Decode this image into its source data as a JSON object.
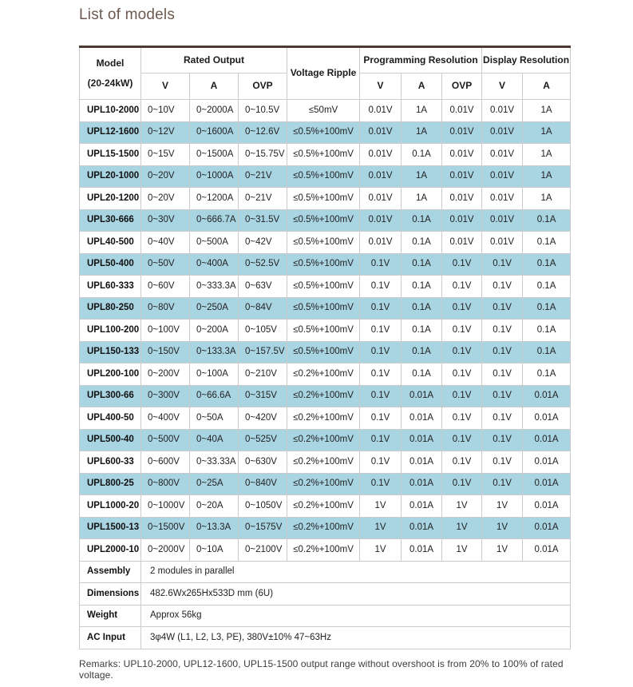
{
  "page": {
    "title": "List of models",
    "remarks": "Remarks: UPL10-2000, UPL12-1600, UPL15-1500 output range without overshoot is from 20% to 100% of rated voltage."
  },
  "colors": {
    "highlight_row": "#a9d4e2",
    "table_top_border": "#4a3a32",
    "title_text": "#6d594e",
    "cell_border": "#cbcbcb"
  },
  "table": {
    "header": {
      "model_line1": "Model",
      "model_line2": "(20-24kW)",
      "rated_output": "Rated Output",
      "voltage_ripple": "Voltage Ripple",
      "programming_resolution": "Programming Resolution",
      "display_resolution": "Display Resolution",
      "sub": [
        "V",
        "A",
        "OVP",
        "V",
        "A",
        "OVP",
        "V",
        "A"
      ]
    },
    "rows": [
      {
        "model": "UPL10-2000",
        "v": "0~10V",
        "a": "0~2000A",
        "ovp": "0~10.5V",
        "ripple": "≤50mV",
        "prog_v": "0.01V",
        "prog_a": "1A",
        "prog_ovp": "0.01V",
        "disp_v": "0.01V",
        "disp_a": "1A",
        "highlight": false
      },
      {
        "model": "UPL12-1600",
        "v": "0~12V",
        "a": "0~1600A",
        "ovp": "0~12.6V",
        "ripple": "≤0.5%+100mV",
        "prog_v": "0.01V",
        "prog_a": "1A",
        "prog_ovp": "0.01V",
        "disp_v": "0.01V",
        "disp_a": "1A",
        "highlight": true
      },
      {
        "model": "UPL15-1500",
        "v": "0~15V",
        "a": "0~1500A",
        "ovp": "0~15.75V",
        "ripple": "≤0.5%+100mV",
        "prog_v": "0.01V",
        "prog_a": "0.1A",
        "prog_ovp": "0.01V",
        "disp_v": "0.01V",
        "disp_a": "1A",
        "highlight": false
      },
      {
        "model": "UPL20-1000",
        "v": "0~20V",
        "a": "0~1000A",
        "ovp": "0~21V",
        "ripple": "≤0.5%+100mV",
        "prog_v": "0.01V",
        "prog_a": "1A",
        "prog_ovp": "0.01V",
        "disp_v": "0.01V",
        "disp_a": "1A",
        "highlight": true
      },
      {
        "model": "UPL20-1200",
        "v": "0~20V",
        "a": "0~1200A",
        "ovp": "0~21V",
        "ripple": "≤0.5%+100mV",
        "prog_v": "0.01V",
        "prog_a": "1A",
        "prog_ovp": "0.01V",
        "disp_v": "0.01V",
        "disp_a": "1A",
        "highlight": false
      },
      {
        "model": "UPL30-666",
        "v": "0~30V",
        "a": "0~666.7A",
        "ovp": "0~31.5V",
        "ripple": "≤0.5%+100mV",
        "prog_v": "0.01V",
        "prog_a": "0.1A",
        "prog_ovp": "0.01V",
        "disp_v": "0.01V",
        "disp_a": "0.1A",
        "highlight": true
      },
      {
        "model": "UPL40-500",
        "v": "0~40V",
        "a": "0~500A",
        "ovp": "0~42V",
        "ripple": "≤0.5%+100mV",
        "prog_v": "0.01V",
        "prog_a": "0.1A",
        "prog_ovp": "0.01V",
        "disp_v": "0.01V",
        "disp_a": "0.1A",
        "highlight": false
      },
      {
        "model": "UPL50-400",
        "v": "0~50V",
        "a": "0~400A",
        "ovp": "0~52.5V",
        "ripple": "≤0.5%+100mV",
        "prog_v": "0.1V",
        "prog_a": "0.1A",
        "prog_ovp": "0.1V",
        "disp_v": "0.1V",
        "disp_a": "0.1A",
        "highlight": true
      },
      {
        "model": "UPL60-333",
        "v": "0~60V",
        "a": "0~333.3A",
        "ovp": "0~63V",
        "ripple": "≤0.5%+100mV",
        "prog_v": "0.1V",
        "prog_a": "0.1A",
        "prog_ovp": "0.1V",
        "disp_v": "0.1V",
        "disp_a": "0.1A",
        "highlight": false
      },
      {
        "model": "UPL80-250",
        "v": "0~80V",
        "a": "0~250A",
        "ovp": "0~84V",
        "ripple": "≤0.5%+100mV",
        "prog_v": "0.1V",
        "prog_a": "0.1A",
        "prog_ovp": "0.1V",
        "disp_v": "0.1V",
        "disp_a": "0.1A",
        "highlight": true
      },
      {
        "model": "UPL100-200",
        "v": "0~100V",
        "a": "0~200A",
        "ovp": "0~105V",
        "ripple": "≤0.5%+100mV",
        "prog_v": "0.1V",
        "prog_a": "0.1A",
        "prog_ovp": "0.1V",
        "disp_v": "0.1V",
        "disp_a": "0.1A",
        "highlight": false
      },
      {
        "model": "UPL150-133",
        "v": "0~150V",
        "a": "0~133.3A",
        "ovp": "0~157.5V",
        "ripple": "≤0.5%+100mV",
        "prog_v": "0.1V",
        "prog_a": "0.1A",
        "prog_ovp": "0.1V",
        "disp_v": "0.1V",
        "disp_a": "0.1A",
        "highlight": true
      },
      {
        "model": "UPL200-100",
        "v": "0~200V",
        "a": "0~100A",
        "ovp": "0~210V",
        "ripple": "≤0.2%+100mV",
        "prog_v": "0.1V",
        "prog_a": "0.1A",
        "prog_ovp": "0.1V",
        "disp_v": "0.1V",
        "disp_a": "0.1A",
        "highlight": false
      },
      {
        "model": "UPL300-66",
        "v": "0~300V",
        "a": "0~66.6A",
        "ovp": "0~315V",
        "ripple": "≤0.2%+100mV",
        "prog_v": "0.1V",
        "prog_a": "0.01A",
        "prog_ovp": "0.1V",
        "disp_v": "0.1V",
        "disp_a": "0.01A",
        "highlight": true
      },
      {
        "model": "UPL400-50",
        "v": "0~400V",
        "a": "0~50A",
        "ovp": "0~420V",
        "ripple": "≤0.2%+100mV",
        "prog_v": "0.1V",
        "prog_a": "0.01A",
        "prog_ovp": "0.1V",
        "disp_v": "0.1V",
        "disp_a": "0.01A",
        "highlight": false
      },
      {
        "model": "UPL500-40",
        "v": "0~500V",
        "a": "0~40A",
        "ovp": "0~525V",
        "ripple": "≤0.2%+100mV",
        "prog_v": "0.1V",
        "prog_a": "0.01A",
        "prog_ovp": "0.1V",
        "disp_v": "0.1V",
        "disp_a": "0.01A",
        "highlight": true
      },
      {
        "model": "UPL600-33",
        "v": "0~600V",
        "a": "0~33.33A",
        "ovp": "0~630V",
        "ripple": "≤0.2%+100mV",
        "prog_v": "0.1V",
        "prog_a": "0.01A",
        "prog_ovp": "0.1V",
        "disp_v": "0.1V",
        "disp_a": "0.01A",
        "highlight": false
      },
      {
        "model": "UPL800-25",
        "v": "0~800V",
        "a": "0~25A",
        "ovp": "0~840V",
        "ripple": "≤0.2%+100mV",
        "prog_v": "0.1V",
        "prog_a": "0.01A",
        "prog_ovp": "0.1V",
        "disp_v": "0.1V",
        "disp_a": "0.01A",
        "highlight": true
      },
      {
        "model": "UPL1000-20",
        "v": "0~1000V",
        "a": "0~20A",
        "ovp": "0~1050V",
        "ripple": "≤0.2%+100mV",
        "prog_v": "1V",
        "prog_a": "0.01A",
        "prog_ovp": "1V",
        "disp_v": "1V",
        "disp_a": "0.01A",
        "highlight": false
      },
      {
        "model": "UPL1500-13",
        "v": "0~1500V",
        "a": "0~13.3A",
        "ovp": "0~1575V",
        "ripple": "≤0.2%+100mV",
        "prog_v": "1V",
        "prog_a": "0.01A",
        "prog_ovp": "1V",
        "disp_v": "1V",
        "disp_a": "0.01A",
        "highlight": true
      },
      {
        "model": "UPL2000-10",
        "v": "0~2000V",
        "a": "0~10A",
        "ovp": "0~2100V",
        "ripple": "≤0.2%+100mV",
        "prog_v": "1V",
        "prog_a": "0.01A",
        "prog_ovp": "1V",
        "disp_v": "1V",
        "disp_a": "0.01A",
        "highlight": false
      }
    ],
    "footer_rows": [
      {
        "label": "Assembly",
        "value": "2 modules in parallel"
      },
      {
        "label": "Dimensions",
        "value": "482.6Wx265Hx533D mm (6U)"
      },
      {
        "label": "Weight",
        "value": "Approx 56kg"
      },
      {
        "label": "AC Input",
        "value": "3φ4W (L1, L2, L3, PE), 380V±10% 47~63Hz"
      }
    ]
  }
}
